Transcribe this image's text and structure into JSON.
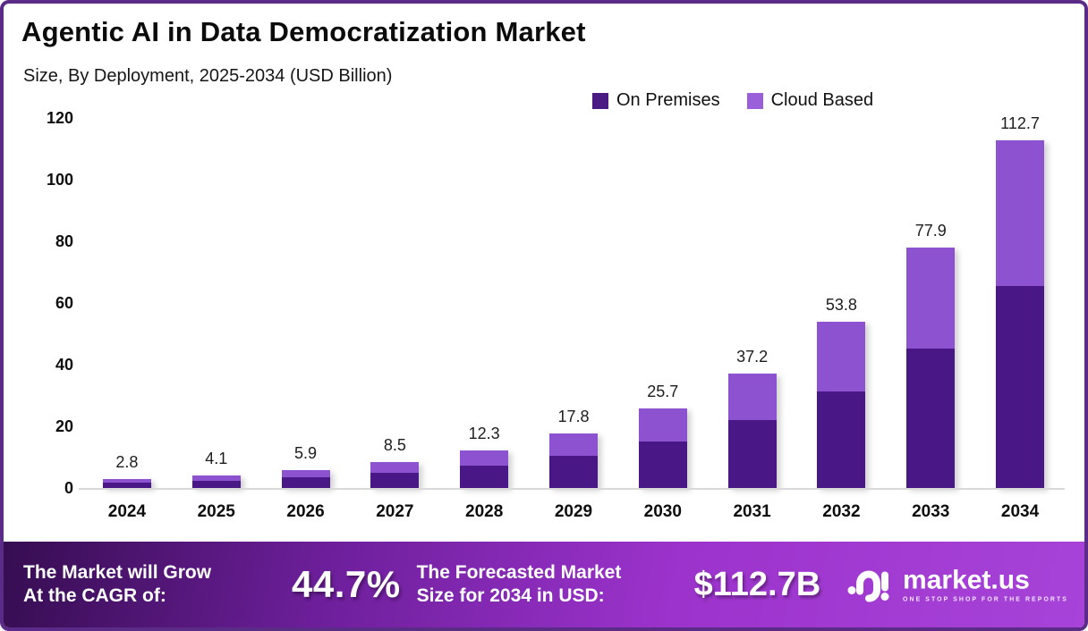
{
  "header": {
    "title": "Agentic AI in Data Democratization Market",
    "subtitle": "Size, By Deployment, 2025-2034 (USD Billion)"
  },
  "legend": [
    {
      "label": "On Premises",
      "color": "#4A1B83"
    },
    {
      "label": "Cloud Based",
      "color": "#9A5FD9"
    }
  ],
  "chart_data": {
    "type": "bar",
    "stacked": true,
    "title": "Agentic AI in Data Democratization Market Size, By Deployment, 2025-2034 (USD Billion)",
    "categories": [
      "2024",
      "2025",
      "2026",
      "2027",
      "2028",
      "2029",
      "2030",
      "2031",
      "2032",
      "2033",
      "2034"
    ],
    "series": [
      {
        "name": "On Premises",
        "color": "#4A1787",
        "values": [
          1.7,
          2.4,
          3.4,
          4.9,
          7.2,
          10.4,
          15.2,
          21.9,
          31.3,
          45.3,
          65.6
        ]
      },
      {
        "name": "Cloud Based",
        "color": "#8C52CF",
        "values": [
          1.1,
          1.7,
          2.5,
          3.6,
          5.1,
          7.4,
          10.5,
          15.3,
          22.5,
          32.6,
          47.1
        ]
      }
    ],
    "totals": [
      2.8,
      4.1,
      5.9,
      8.5,
      12.3,
      17.8,
      25.7,
      37.2,
      53.8,
      77.9,
      112.7
    ],
    "total_labels": [
      "2.8",
      "4.1",
      "5.9",
      "8.5",
      "12.3",
      "17.8",
      "25.7",
      "37.2",
      "53.8",
      "77.9",
      "112.7"
    ],
    "xlabel": "",
    "ylabel": "",
    "ylim": [
      0,
      120
    ],
    "yticks": [
      0,
      20,
      40,
      60,
      80,
      100,
      120
    ],
    "grid": false,
    "legend_position": "top-right"
  },
  "banner": {
    "cagr": {
      "lines": [
        "The Market will Grow",
        "At the CAGR of:"
      ],
      "value": "44.7%"
    },
    "forecast": {
      "lines": [
        "The Forecasted Market",
        "Size for 2034 in USD:"
      ],
      "value": "$112.7B"
    },
    "brand": {
      "name": "market.us",
      "tagline": "ONE STOP SHOP FOR THE REPORTS"
    }
  }
}
